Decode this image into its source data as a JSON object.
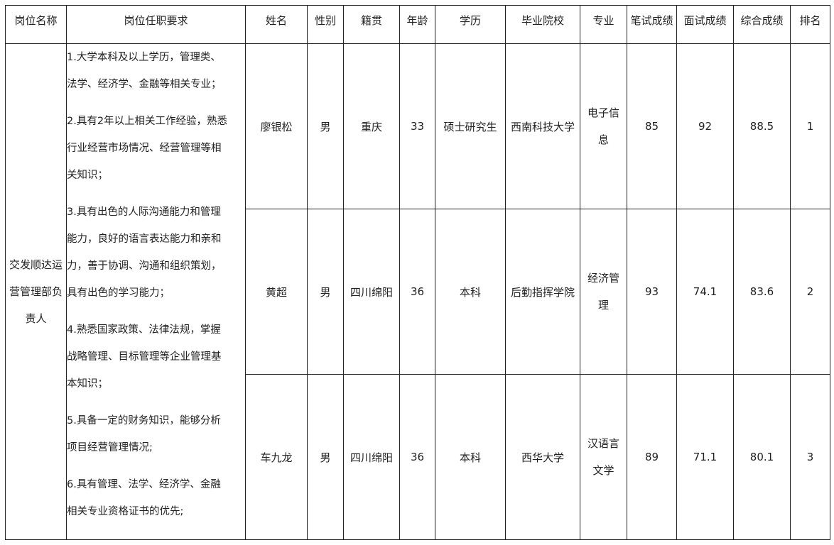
{
  "headers": [
    "岗位名称",
    "岗位任职要求",
    "姓名",
    "性别",
    "籍贯",
    "年龄",
    "学历",
    "毕业院校",
    "专业",
    "笔试成绩",
    "面试成绩",
    "综合成绩",
    "排名"
  ],
  "position": "交发顺达运营管理部负责人",
  "requirements": [
    [
      "1.大学本科及以上学历，管理类、",
      "法学、经济学、金融等相关专业；"
    ],
    [
      "2.具有2年以上相关工作经验，熟悉",
      "行业经营市场情况、经营管理等相",
      "关知识；"
    ],
    [
      "3.具有出色的人际沟通能力和管理",
      "能力，良好的语言表达能力和亲和",
      "力，善于协调、沟通和组织策划，",
      "具有出色的学习能力；"
    ],
    [
      "4.熟悉国家政策、法律法规，掌握",
      "战略管理、目标管理等企业管理基",
      "本知识；"
    ],
    [
      "5.具备一定的财务知识，能够分析",
      "项目经营管理情况;"
    ],
    [
      "6.具有管理、法学、经济学、金融",
      "相关专业资格证书的优先;"
    ]
  ],
  "rows": [
    {
      "name": "廖银松",
      "gender": "男",
      "origin": "重庆",
      "age": "33",
      "education": "硕士研究生",
      "school": "西南科技大学",
      "major": "电子信息",
      "written": "85",
      "interview": "92",
      "total": "88.5",
      "rank": "1"
    },
    {
      "name": "黄超",
      "gender": "男",
      "origin": "四川绵阳",
      "age": "36",
      "education": "本科",
      "school": "后勤指挥学院",
      "major": "经济管理",
      "written": "93",
      "interview": "74.1",
      "total": "83.6",
      "rank": "2"
    },
    {
      "name": "车九龙",
      "gender": "男",
      "origin": "四川绵阳",
      "age": "36",
      "education": "本科",
      "school": "西华大学",
      "major": "汉语言文学",
      "written": "89",
      "interview": "71.1",
      "total": "80.1",
      "rank": "3"
    }
  ]
}
